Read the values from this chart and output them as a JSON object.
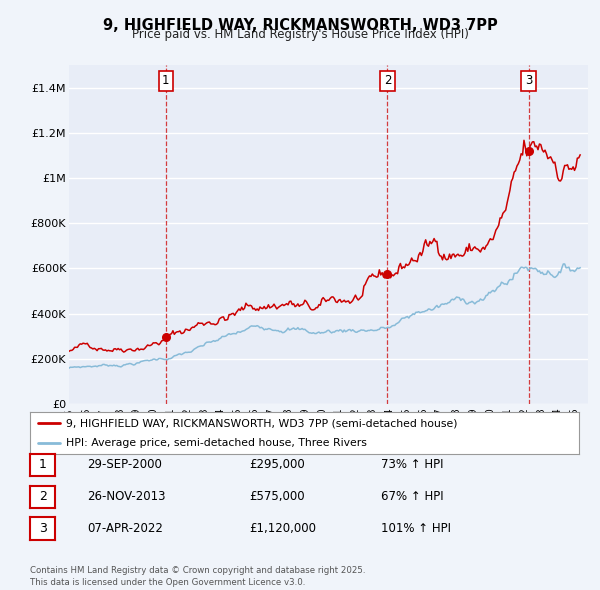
{
  "title": "9, HIGHFIELD WAY, RICKMANSWORTH, WD3 7PP",
  "subtitle": "Price paid vs. HM Land Registry's House Price Index (HPI)",
  "background_color": "#f0f4fa",
  "plot_bg_color": "#e8edf7",
  "grid_color": "#ffffff",
  "red_color": "#cc0000",
  "blue_color": "#88bbd8",
  "ylim": [
    0,
    1500000
  ],
  "yticks": [
    0,
    200000,
    400000,
    600000,
    800000,
    1000000,
    1200000,
    1400000
  ],
  "ytick_labels": [
    "£0",
    "£200K",
    "£400K",
    "£600K",
    "£800K",
    "£1M",
    "£1.2M",
    "£1.4M"
  ],
  "xlim_start": 1995.0,
  "xlim_end": 2025.8,
  "sale_dates": [
    2000.75,
    2013.9,
    2022.27
  ],
  "sale_prices": [
    295000,
    575000,
    1120000
  ],
  "sale_labels": [
    "1",
    "2",
    "3"
  ],
  "legend_line1": "9, HIGHFIELD WAY, RICKMANSWORTH, WD3 7PP (semi-detached house)",
  "legend_line2": "HPI: Average price, semi-detached house, Three Rivers",
  "table_rows": [
    {
      "num": "1",
      "date": "29-SEP-2000",
      "price": "£295,000",
      "hpi": "73% ↑ HPI"
    },
    {
      "num": "2",
      "date": "26-NOV-2013",
      "price": "£575,000",
      "hpi": "67% ↑ HPI"
    },
    {
      "num": "3",
      "date": "07-APR-2022",
      "price": "£1,120,000",
      "hpi": "101% ↑ HPI"
    }
  ],
  "footer": "Contains HM Land Registry data © Crown copyright and database right 2025.\nThis data is licensed under the Open Government Licence v3.0.",
  "red_seed": 42,
  "blue_seed": 7
}
